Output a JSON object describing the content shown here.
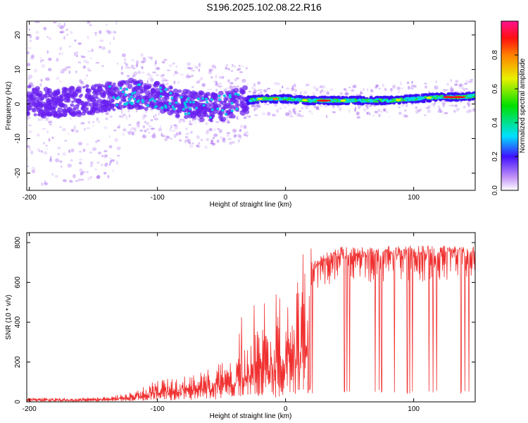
{
  "title": "S196.2025.102.08.22.R16",
  "colors": {
    "snr_line": "#f03030",
    "spectral_track": "#3a10ff",
    "scatter_purple": "#9a55f0"
  },
  "chart_data": [
    {
      "type": "heatmap",
      "xlabel": "Height of straight line (km)",
      "ylabel": "Frequency (Hz)",
      "xlim": [
        -202,
        148
      ],
      "ylim": [
        -25,
        24
      ],
      "xticks": [
        -200,
        -100,
        0,
        100
      ],
      "yticks": [
        -20,
        -10,
        0,
        10,
        20
      ],
      "grid": false,
      "track": {
        "x": [
          -200,
          -180,
          -160,
          -140,
          -120,
          -100,
          -80,
          -60,
          -40,
          -30,
          -20,
          0,
          20,
          40,
          60,
          80,
          100,
          120,
          140,
          148
        ],
        "y": [
          1,
          0,
          1,
          2,
          3,
          2,
          0,
          -1,
          0,
          1,
          1.5,
          1.5,
          1,
          1,
          1,
          1,
          1.5,
          2,
          2,
          2.5
        ]
      },
      "colorbar": {
        "label": "Normalized spectral amplitude",
        "range": [
          0,
          1
        ],
        "ticks": [
          0.0,
          0.2,
          0.4,
          0.6,
          0.8
        ]
      }
    },
    {
      "type": "line",
      "xlabel": "Height of straight line (km)",
      "ylabel": "SNR (10 * v/v)",
      "xlim": [
        -202,
        148
      ],
      "ylim": [
        0,
        850
      ],
      "xticks": [
        -200,
        -100,
        0,
        100
      ],
      "yticks": [
        0,
        200,
        400,
        600,
        800
      ],
      "grid": false,
      "series": [
        {
          "envelope": {
            "x": [
              -200,
              -160,
              -140,
              -120,
              -100,
              -80,
              -60,
              -40,
              -30,
              -20,
              -10,
              0,
              10,
              20,
              30,
              40,
              60,
              80,
              100,
              120,
              148
            ],
            "y": [
              20,
              20,
              25,
              50,
              110,
              130,
              170,
              240,
              320,
              380,
              420,
              480,
              620,
              700,
              760,
              780,
              780,
              785,
              785,
              785,
              785
            ]
          },
          "dropouts_x": [
            21,
            46,
            48,
            50,
            70,
            73,
            75,
            85,
            95,
            97,
            99,
            112,
            115,
            118,
            137,
            140,
            143
          ]
        }
      ]
    }
  ]
}
